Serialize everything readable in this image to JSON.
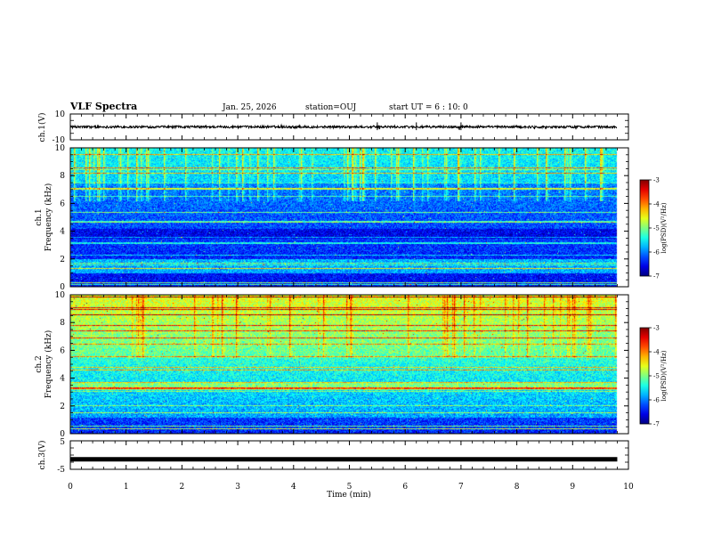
{
  "chart_data": {
    "type": "heatmap",
    "title": "VLF Spectra",
    "date": "Jan. 25, 2026",
    "station": "station=OUJ",
    "start_time": "start UT =  6 : 10: 0",
    "xlabel": "Time (min)",
    "xlim": [
      0,
      10
    ],
    "x_ticks": [
      "0",
      "1",
      "2",
      "3",
      "4",
      "5",
      "6",
      "7",
      "8",
      "9",
      "10"
    ],
    "data_end_min": 9.8,
    "panels": [
      {
        "id": "ch1-waveform",
        "type": "line",
        "ylabel": "ch.1(V)",
        "ylim": [
          -10,
          10
        ],
        "y_ticks": [
          "10",
          "-10"
        ],
        "baseline": 0
      },
      {
        "id": "ch1-spectrogram",
        "type": "heatmap",
        "ylabel_line1": "ch.1",
        "ylabel_line2": "Frequency (kHz)",
        "ylim": [
          0,
          10
        ],
        "y_ticks": [
          "0",
          "2",
          "4",
          "6",
          "8",
          "10"
        ],
        "colorbar": {
          "label": "log(PSD)(V²/Hz)",
          "range": [
            -7,
            -3
          ],
          "ticks": [
            "-3",
            "-4",
            "-5",
            "-6",
            "-7"
          ]
        }
      },
      {
        "id": "ch2-spectrogram",
        "type": "heatmap",
        "ylabel_line1": "ch.2",
        "ylabel_line2": "Frequency (kHz)",
        "ylim": [
          0,
          10
        ],
        "y_ticks": [
          "0",
          "2",
          "4",
          "6",
          "8",
          "10"
        ],
        "colorbar": {
          "label": "log(PSD)(V²/Hz)",
          "range": [
            -7,
            -3
          ],
          "ticks": [
            "-3",
            "-4",
            "-5",
            "-6",
            "-7"
          ]
        }
      },
      {
        "id": "ch3-waveform",
        "type": "line",
        "ylabel": "ch.3(V)",
        "ylim": [
          -5,
          5
        ],
        "y_ticks": [
          "5",
          "-5"
        ],
        "baseline": -1.5
      }
    ]
  }
}
